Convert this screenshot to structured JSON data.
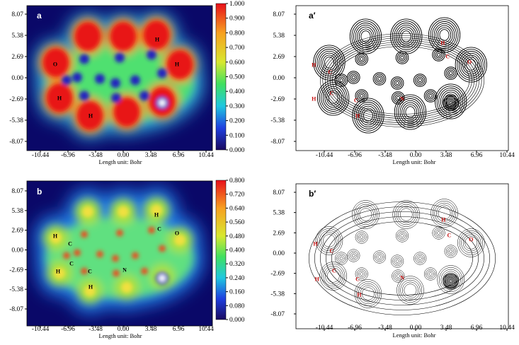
{
  "panels": [
    {
      "label": "a",
      "xticks": [
        "-10.44",
        "-6.96",
        "-3.48",
        "0.00",
        "3.48",
        "6.96",
        "10.44"
      ],
      "yticks": [
        "8.07",
        "5.38",
        "2.69",
        "0.00",
        "-2.69",
        "-5.38",
        "-8.07"
      ],
      "xlabel": "Length unit: Bohr",
      "colorbar": [
        "1.000",
        "0.900",
        "0.800",
        "0.700",
        "0.600",
        "0.500",
        "0.400",
        "0.300",
        "0.200",
        "0.100",
        "0.000"
      ],
      "atoms": [
        "H",
        "H",
        "O",
        "H",
        "H"
      ]
    },
    {
      "label": "a′",
      "xticks": [
        "-10.44",
        "-6.96",
        "-3.48",
        "0.00",
        "3.48",
        "6.96",
        "10.44"
      ],
      "yticks": [
        "8.07",
        "5.38",
        "2.69",
        "0.00",
        "-2.69",
        "-5.38",
        "-8.07"
      ],
      "xlabel": "Length unit: Bohr",
      "atoms": [
        "H",
        "C",
        "O",
        "H",
        "C",
        "C",
        "H",
        "C",
        "H",
        "N"
      ]
    },
    {
      "label": "b",
      "xticks": [
        "-10.44",
        "-6.96",
        "-3.48",
        "0.00",
        "3.48",
        "6.96",
        "10.44"
      ],
      "yticks": [
        "8.07",
        "5.38",
        "2.69",
        "0.00",
        "-2.69",
        "-5.38",
        "-8.07"
      ],
      "xlabel": "Length unit: Bohr",
      "colorbar": [
        "0.800",
        "0.720",
        "0.640",
        "0.560",
        "0.480",
        "0.400",
        "0.320",
        "0.240",
        "0.160",
        "0.080",
        "0.000"
      ],
      "atoms": [
        "H",
        "C",
        "O",
        "H",
        "C",
        "C",
        "H",
        "C",
        "H",
        "N"
      ]
    },
    {
      "label": "b′",
      "xticks": [
        "-10.44",
        "-6.96",
        "-3.48",
        "0.00",
        "3.48",
        "6.96",
        "10.44"
      ],
      "yticks": [
        "8.07",
        "5.38",
        "2.69",
        "0.00",
        "-2.69",
        "-5.38",
        "-8.07"
      ],
      "xlabel": "Length unit: Bohr",
      "atoms": [
        "H",
        "C",
        "O",
        "H",
        "C",
        "C",
        "H",
        "C",
        "H",
        "N"
      ]
    }
  ]
}
